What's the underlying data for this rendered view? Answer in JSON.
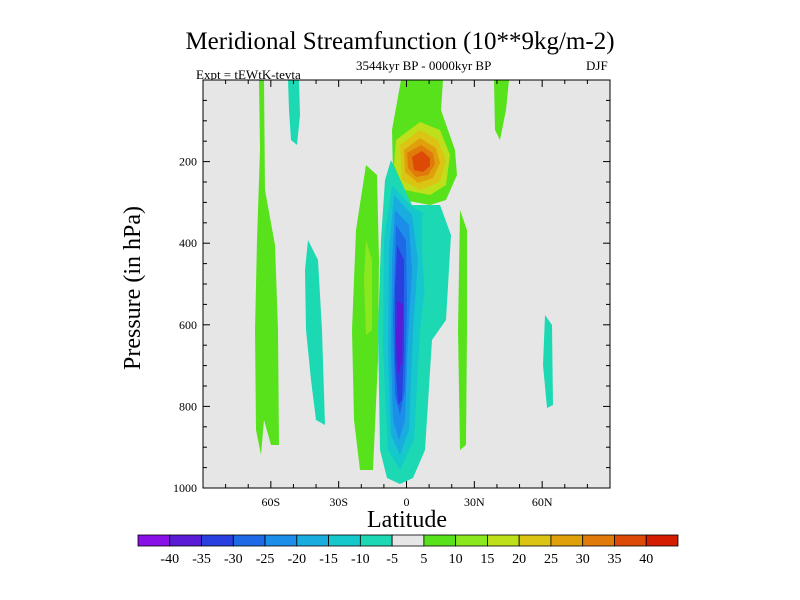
{
  "chart_data": {
    "type": "contour",
    "title": "Meridional Streamfunction (10**9kg/m-2)",
    "subtitle": "3544kyr BP - 0000kyr BP",
    "experiment": "Expt = tEWtK-tevta",
    "season": "DJF",
    "xlabel": "Latitude",
    "ylabel": "Pressure (in hPa)",
    "xlim": [
      -90,
      90
    ],
    "ylim": [
      1000,
      0
    ],
    "xticks": [
      {
        "value": -60,
        "label": "60S"
      },
      {
        "value": -30,
        "label": "30S"
      },
      {
        "value": 0,
        "label": "0"
      },
      {
        "value": 30,
        "label": "30N"
      },
      {
        "value": 60,
        "label": "60N"
      }
    ],
    "yticks": [
      {
        "value": 200,
        "label": "200"
      },
      {
        "value": 400,
        "label": "400"
      },
      {
        "value": 600,
        "label": "600"
      },
      {
        "value": 800,
        "label": "800"
      },
      {
        "value": 1000,
        "label": "1000"
      }
    ],
    "colorbar": {
      "labels": [
        "-40",
        "-35",
        "-30",
        "-25",
        "-20",
        "-15",
        "-10",
        "-5",
        "5",
        "10",
        "15",
        "20",
        "25",
        "30",
        "35",
        "40"
      ],
      "colors": [
        "#8a10e8",
        "#5b1ad6",
        "#2a3fe0",
        "#1e6ae6",
        "#1b8ee9",
        "#19addf",
        "#15c8cc",
        "#1dd9b3",
        "#e6e6e6",
        "#58e21c",
        "#8ce81e",
        "#bde01a",
        "#dcc414",
        "#e0a00c",
        "#e07a0a",
        "#dc4a06",
        "#d41c00"
      ]
    },
    "background_color": "#e6e6e6"
  }
}
